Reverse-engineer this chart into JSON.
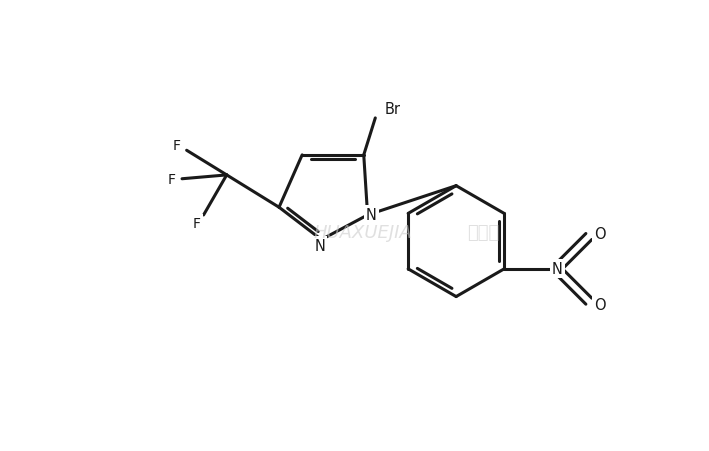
{
  "background_color": "#ffffff",
  "bond_color": "#1a1a1a",
  "line_width": 2.2,
  "figsize": [
    7.09,
    4.52
  ],
  "dpi": 100,
  "xlim": [
    0,
    7.09
  ],
  "ylim": [
    0,
    4.52
  ]
}
